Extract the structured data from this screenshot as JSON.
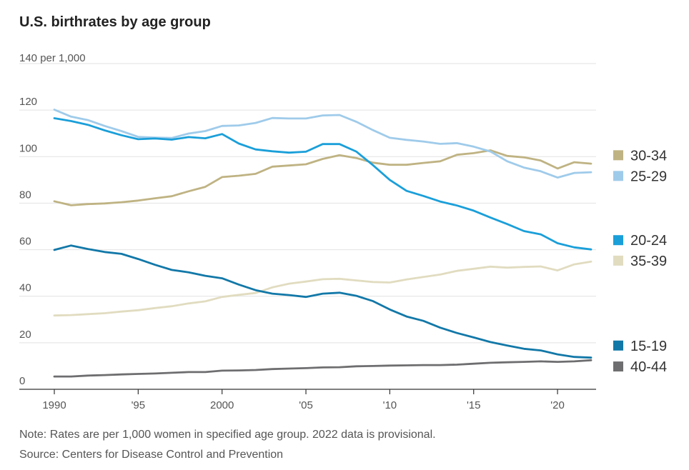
{
  "chart_data": {
    "type": "line",
    "title": "U.S. birthrates by age group",
    "unit_label": "140 per 1,000",
    "ylim": [
      0,
      140
    ],
    "xlim": [
      1990,
      2022
    ],
    "yticks": [
      {
        "value": 0,
        "label": "0"
      },
      {
        "value": 20,
        "label": "20"
      },
      {
        "value": 40,
        "label": "40"
      },
      {
        "value": 60,
        "label": "60"
      },
      {
        "value": 80,
        "label": "80"
      },
      {
        "value": 100,
        "label": "100"
      },
      {
        "value": 120,
        "label": "120"
      }
    ],
    "xticks": [
      {
        "value": 1990,
        "label": "1990"
      },
      {
        "value": 1995,
        "label": "'95"
      },
      {
        "value": 2000,
        "label": "2000"
      },
      {
        "value": 2005,
        "label": "'05"
      },
      {
        "value": 2010,
        "label": "'10"
      },
      {
        "value": 2015,
        "label": "'15"
      },
      {
        "value": 2020,
        "label": "'20"
      }
    ],
    "grid": true,
    "legend_position": "right",
    "x": [
      1990,
      1991,
      1992,
      1993,
      1994,
      1995,
      1996,
      1997,
      1998,
      1999,
      2000,
      2001,
      2002,
      2003,
      2004,
      2005,
      2006,
      2007,
      2008,
      2009,
      2010,
      2011,
      2012,
      2013,
      2014,
      2015,
      2016,
      2017,
      2018,
      2019,
      2020,
      2021,
      2022
    ],
    "series": [
      {
        "name": "30-34",
        "color": "#bfb383",
        "values": [
          80.8,
          79.1,
          79.6,
          79.9,
          80.4,
          81.1,
          82.1,
          83.0,
          85.1,
          87.0,
          91.2,
          91.8,
          92.6,
          95.7,
          96.2,
          96.7,
          99.0,
          100.6,
          99.4,
          97.4,
          96.5,
          96.5,
          97.3,
          98.0,
          100.8,
          101.5,
          102.7,
          100.3,
          99.7,
          98.3,
          94.9,
          97.6,
          97.0
        ]
      },
      {
        "name": "25-29",
        "color": "#9fcbea",
        "values": [
          120.2,
          117.2,
          115.7,
          113.2,
          111.0,
          108.5,
          108.2,
          108.0,
          109.9,
          111.0,
          113.2,
          113.4,
          114.5,
          116.6,
          116.4,
          116.4,
          117.7,
          117.9,
          115.0,
          111.4,
          108.1,
          107.2,
          106.5,
          105.5,
          105.8,
          104.3,
          102.2,
          98.0,
          95.3,
          93.7,
          91.0,
          93.0,
          93.3
        ]
      },
      {
        "name": "20-24",
        "color": "#1a9fd9",
        "values": [
          116.5,
          115.3,
          113.7,
          111.3,
          109.2,
          107.5,
          107.8,
          107.3,
          108.4,
          107.9,
          109.7,
          105.6,
          103.1,
          102.3,
          101.7,
          102.1,
          105.4,
          105.4,
          102.2,
          96.3,
          90.0,
          85.3,
          83.1,
          80.7,
          79.0,
          76.8,
          73.8,
          71.0,
          68.0,
          66.6,
          62.8,
          61.0,
          60.1
        ]
      },
      {
        "name": "35-39",
        "color": "#e1dcc0",
        "values": [
          31.7,
          31.9,
          32.3,
          32.7,
          33.4,
          34.0,
          34.9,
          35.7,
          36.9,
          37.8,
          39.7,
          40.6,
          41.4,
          43.8,
          45.4,
          46.3,
          47.3,
          47.5,
          46.8,
          46.1,
          45.9,
          47.2,
          48.3,
          49.3,
          50.9,
          51.8,
          52.7,
          52.3,
          52.6,
          52.8,
          51.1,
          53.7,
          54.9
        ]
      },
      {
        "name": "15-19",
        "color": "#1278a8",
        "values": [
          59.9,
          61.8,
          60.3,
          59.0,
          58.2,
          56.0,
          53.5,
          51.3,
          50.3,
          48.8,
          47.7,
          45.0,
          42.6,
          41.1,
          40.5,
          39.7,
          41.1,
          41.5,
          40.2,
          37.9,
          34.3,
          31.3,
          29.4,
          26.5,
          24.2,
          22.3,
          20.3,
          18.8,
          17.4,
          16.7,
          15.0,
          13.9,
          13.6
        ]
      },
      {
        "name": "40-44",
        "color": "#6e6e70",
        "values": [
          5.5,
          5.5,
          5.9,
          6.1,
          6.4,
          6.6,
          6.8,
          7.1,
          7.4,
          7.4,
          8.0,
          8.1,
          8.3,
          8.7,
          8.9,
          9.1,
          9.4,
          9.5,
          9.9,
          10.0,
          10.2,
          10.3,
          10.4,
          10.4,
          10.6,
          11.0,
          11.4,
          11.6,
          11.8,
          12.0,
          11.8,
          12.0,
          12.5
        ]
      }
    ],
    "legend": [
      {
        "name": "30-34",
        "color": "#bfb383",
        "anchor_value": 100.6
      },
      {
        "name": "25-29",
        "color": "#9fcbea",
        "anchor_value": 91.7
      },
      {
        "name": "20-24",
        "color": "#1a9fd9",
        "anchor_value": 64.1
      },
      {
        "name": "35-39",
        "color": "#e1dcc0",
        "anchor_value": 55.3
      },
      {
        "name": "15-19",
        "color": "#1278a8",
        "anchor_value": 18.8
      },
      {
        "name": "40-44",
        "color": "#6e6e70",
        "anchor_value": 9.8
      }
    ]
  },
  "notes": {
    "note": "Note: Rates are per 1,000 women in specified age group. 2022 data is provisional.",
    "source": "Source: Centers for Disease Control and Prevention"
  }
}
